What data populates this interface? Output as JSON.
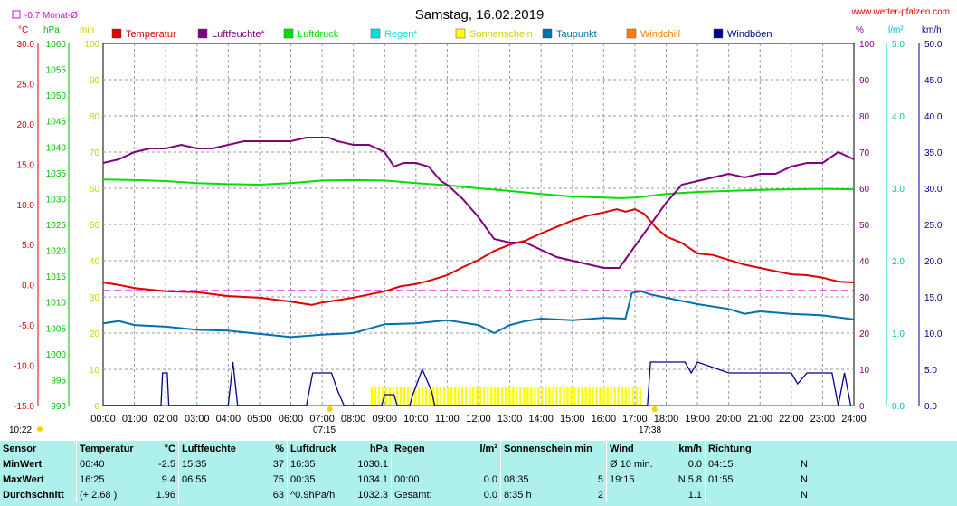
{
  "title": "Samstag, 16.02.2019",
  "site": "www.wetter-pfalzen.com",
  "month_avg_label": "-0.7 Monat-Ø",
  "clock": "10:22",
  "sunrise_label": "07:15",
  "sunset_label": "17:38",
  "units": {
    "temp": "°C",
    "press": "hPa",
    "min": "min",
    "pct": "%",
    "rain": "l/m²",
    "wind": "km/h"
  },
  "colors": {
    "temperature": "#e00000",
    "humidity": "#800080",
    "pressure": "#00e000",
    "rain": "#00e0e0",
    "sunshine": "#ffff00",
    "dewpoint": "#0070b0",
    "windchill": "#ff8000",
    "gusts": "#000090",
    "monthavg": "#e000e0"
  },
  "chart_data": {
    "type": "line",
    "x_ticks": [
      "00:00",
      "01:00",
      "02:00",
      "03:00",
      "04:00",
      "05:00",
      "06:00",
      "07:00",
      "08:00",
      "09:00",
      "10:00",
      "11:00",
      "12:00",
      "13:00",
      "14:00",
      "15:00",
      "16:00",
      "17:00",
      "18:00",
      "19:00",
      "20:00",
      "21:00",
      "22:00",
      "23:00",
      "24:00"
    ],
    "axes": {
      "temp_ticks": [
        "30.0",
        "25.0",
        "20.0",
        "15.0",
        "10.0",
        "5.0",
        "0.0",
        "-5.0",
        "-10.0",
        "-15.0"
      ],
      "press_ticks": [
        "1060",
        "1055",
        "1050",
        "1045",
        "1040",
        "1035",
        "1030",
        "1025",
        "1020",
        "1015",
        "1010",
        "1005",
        "1000",
        "995",
        "990"
      ],
      "min_ticks": [
        "100",
        "90",
        "80",
        "70",
        "60",
        "50",
        "40",
        "30",
        "20",
        "10",
        "0"
      ],
      "pct_ticks": [
        "100",
        "90",
        "80",
        "70",
        "60",
        "50",
        "40",
        "30",
        "20",
        "10",
        "0"
      ],
      "rain_ticks": [
        "5.0",
        "4.0",
        "3.0",
        "2.0",
        "1.0",
        "0.0"
      ],
      "wind_ticks": [
        "50.0",
        "45.0",
        "40.0",
        "35.0",
        "30.0",
        "25.0",
        "20.0",
        "15.0",
        "10.0",
        "5.0",
        "0.0"
      ],
      "temp_range": [
        -15,
        30
      ],
      "press_range": [
        990,
        1060
      ],
      "pct_range": [
        0,
        100
      ],
      "wind_range": [
        0,
        50
      ]
    },
    "legend": [
      {
        "key": "temperature",
        "label": "Temperatur"
      },
      {
        "key": "humidity",
        "label": "Luftfeuchte*"
      },
      {
        "key": "pressure",
        "label": "Luftdruck"
      },
      {
        "key": "rain",
        "label": "Regen*"
      },
      {
        "key": "sunshine",
        "label": "Sonnenschein"
      },
      {
        "key": "dewpoint",
        "label": "Taupunkt"
      },
      {
        "key": "windchill",
        "label": "Windchill"
      },
      {
        "key": "gusts",
        "label": "Windböen"
      }
    ],
    "month_avg_temp": -0.7,
    "series": {
      "temperature": [
        [
          0,
          0.3
        ],
        [
          0.5,
          0
        ],
        [
          1,
          -0.4
        ],
        [
          1.5,
          -0.6
        ],
        [
          2,
          -0.8
        ],
        [
          3,
          -0.9
        ],
        [
          4,
          -1.4
        ],
        [
          5,
          -1.6
        ],
        [
          6,
          -2.1
        ],
        [
          6.67,
          -2.5
        ],
        [
          7,
          -2.2
        ],
        [
          7.5,
          -1.9
        ],
        [
          8,
          -1.6
        ],
        [
          8.5,
          -1.2
        ],
        [
          9,
          -0.8
        ],
        [
          9.5,
          -0.2
        ],
        [
          10,
          0.1
        ],
        [
          10.5,
          0.6
        ],
        [
          11,
          1.2
        ],
        [
          11.5,
          2.2
        ],
        [
          12,
          3.1
        ],
        [
          12.5,
          4.2
        ],
        [
          13,
          5.0
        ],
        [
          13.5,
          5.5
        ],
        [
          14,
          6.4
        ],
        [
          14.5,
          7.2
        ],
        [
          15,
          8.0
        ],
        [
          15.5,
          8.6
        ],
        [
          16,
          9.0
        ],
        [
          16.42,
          9.4
        ],
        [
          16.7,
          9.1
        ],
        [
          17,
          9.4
        ],
        [
          17.3,
          8.8
        ],
        [
          17.7,
          7.0
        ],
        [
          18,
          6.0
        ],
        [
          18.5,
          5.2
        ],
        [
          19,
          3.9
        ],
        [
          19.5,
          3.7
        ],
        [
          20,
          3.1
        ],
        [
          20.5,
          2.5
        ],
        [
          21,
          2.1
        ],
        [
          21.5,
          1.7
        ],
        [
          22,
          1.3
        ],
        [
          22.5,
          1.2
        ],
        [
          23,
          0.9
        ],
        [
          23.5,
          0.4
        ],
        [
          24,
          0.3
        ]
      ],
      "humidity": [
        [
          0,
          67
        ],
        [
          0.5,
          68
        ],
        [
          1,
          70
        ],
        [
          1.5,
          71
        ],
        [
          2,
          71
        ],
        [
          2.5,
          72
        ],
        [
          3,
          71
        ],
        [
          3.5,
          71
        ],
        [
          4,
          72
        ],
        [
          4.5,
          73
        ],
        [
          5,
          73
        ],
        [
          5.5,
          73
        ],
        [
          6,
          73
        ],
        [
          6.5,
          74
        ],
        [
          6.92,
          74
        ],
        [
          7.2,
          74
        ],
        [
          7.5,
          73
        ],
        [
          8,
          72
        ],
        [
          8.5,
          72
        ],
        [
          9,
          70
        ],
        [
          9.3,
          66
        ],
        [
          9.6,
          67
        ],
        [
          10,
          67
        ],
        [
          10.4,
          66
        ],
        [
          10.8,
          62
        ],
        [
          11,
          61
        ],
        [
          11.5,
          57
        ],
        [
          12,
          52
        ],
        [
          12.5,
          46
        ],
        [
          13,
          45
        ],
        [
          13.5,
          45
        ],
        [
          14,
          43
        ],
        [
          14.5,
          41
        ],
        [
          15,
          40
        ],
        [
          15.5,
          39
        ],
        [
          16,
          38
        ],
        [
          16.5,
          38
        ],
        [
          17,
          44
        ],
        [
          17.5,
          50
        ],
        [
          18,
          56
        ],
        [
          18.5,
          61
        ],
        [
          19,
          62
        ],
        [
          19.5,
          63
        ],
        [
          20,
          64
        ],
        [
          20.5,
          63
        ],
        [
          21,
          64
        ],
        [
          21.5,
          64
        ],
        [
          22,
          66
        ],
        [
          22.5,
          67
        ],
        [
          23,
          67
        ],
        [
          23.5,
          70
        ],
        [
          24,
          68
        ]
      ],
      "pressure": [
        [
          0,
          1033.7
        ],
        [
          1,
          1033.6
        ],
        [
          2,
          1033.4
        ],
        [
          3,
          1033.0
        ],
        [
          4,
          1032.8
        ],
        [
          5,
          1032.7
        ],
        [
          6,
          1033.0
        ],
        [
          7,
          1033.5
        ],
        [
          8,
          1033.6
        ],
        [
          9,
          1033.5
        ],
        [
          10,
          1033.0
        ],
        [
          11,
          1032.6
        ],
        [
          12,
          1032.0
        ],
        [
          13,
          1031.5
        ],
        [
          14,
          1030.9
        ],
        [
          15,
          1030.4
        ],
        [
          16,
          1030.2
        ],
        [
          16.58,
          1030.1
        ],
        [
          17,
          1030.2
        ],
        [
          18,
          1030.9
        ],
        [
          19,
          1031.3
        ],
        [
          20,
          1031.5
        ],
        [
          21,
          1031.7
        ],
        [
          22,
          1031.8
        ],
        [
          23,
          1031.9
        ],
        [
          24,
          1031.8
        ]
      ],
      "dewpoint": [
        [
          0,
          -4.8
        ],
        [
          0.5,
          -4.5
        ],
        [
          1,
          -5.0
        ],
        [
          2,
          -5.2
        ],
        [
          3,
          -5.6
        ],
        [
          4,
          -5.7
        ],
        [
          5,
          -6.1
        ],
        [
          6,
          -6.5
        ],
        [
          7,
          -6.2
        ],
        [
          8,
          -6.0
        ],
        [
          9,
          -4.9
        ],
        [
          10,
          -4.8
        ],
        [
          11,
          -4.4
        ],
        [
          12,
          -5.0
        ],
        [
          12.5,
          -6.0
        ],
        [
          13,
          -5.0
        ],
        [
          13.5,
          -4.5
        ],
        [
          14,
          -4.2
        ],
        [
          15,
          -4.4
        ],
        [
          16,
          -4.1
        ],
        [
          16.7,
          -4.2
        ],
        [
          16.9,
          -1.0
        ],
        [
          17.2,
          -0.8
        ],
        [
          17.5,
          -1.2
        ],
        [
          18,
          -1.6
        ],
        [
          19,
          -2.4
        ],
        [
          20,
          -3.0
        ],
        [
          20.5,
          -3.6
        ],
        [
          21,
          -3.3
        ],
        [
          22,
          -3.6
        ],
        [
          23,
          -3.8
        ],
        [
          24,
          -4.3
        ]
      ],
      "gusts": [
        [
          0,
          0
        ],
        [
          1.85,
          0
        ],
        [
          1.9,
          4.5
        ],
        [
          2.05,
          4.5
        ],
        [
          2.1,
          0
        ],
        [
          4.0,
          0
        ],
        [
          4.15,
          6
        ],
        [
          4.3,
          0
        ],
        [
          6.5,
          0
        ],
        [
          6.7,
          4.5
        ],
        [
          7.3,
          4.5
        ],
        [
          7.5,
          2
        ],
        [
          7.7,
          0
        ],
        [
          8.9,
          0
        ],
        [
          9.0,
          1.5
        ],
        [
          9.3,
          1.5
        ],
        [
          9.4,
          0
        ],
        [
          9.8,
          0
        ],
        [
          9.9,
          1.5
        ],
        [
          10.2,
          5
        ],
        [
          10.5,
          2
        ],
        [
          10.6,
          0
        ],
        [
          17.4,
          0
        ],
        [
          17.5,
          6
        ],
        [
          18.6,
          6
        ],
        [
          18.8,
          4.5
        ],
        [
          19,
          6
        ],
        [
          20,
          4.5
        ],
        [
          22,
          4.5
        ],
        [
          22.2,
          3.0
        ],
        [
          22.5,
          4.5
        ],
        [
          23.3,
          4.5
        ],
        [
          23.5,
          0
        ],
        [
          23.7,
          4.5
        ],
        [
          23.9,
          0
        ]
      ],
      "sunshine": {
        "start": 8.55,
        "end": 17.25,
        "level": 5
      },
      "rain": [
        [
          0,
          0
        ],
        [
          24,
          0
        ]
      ]
    }
  },
  "stats": {
    "headers": [
      "Sensor",
      "Temperatur",
      "°C",
      "Luftfeuchte",
      "%",
      "Luftdruck",
      "hPa",
      "Regen",
      "l/m²",
      "Sonnenschein min",
      "Wind",
      "km/h",
      "Richtung"
    ],
    "rows": [
      {
        "label": "MinWert",
        "t_time": "06:40",
        "t_val": "-2.5",
        "h_time": "15:35",
        "h_val": "37",
        "p_time": "16:35",
        "p_val": "1030.1",
        "r_time": "",
        "r_val": "",
        "s_time": "",
        "s_val": "",
        "w_time": "Ø 10 min.",
        "w_val": "0.0",
        "d_time": "04:15",
        "d_val": "N"
      },
      {
        "label": "MaxWert",
        "t_time": "16:25",
        "t_val": "9.4",
        "h_time": "06:55",
        "h_val": "75",
        "p_time": "00:35",
        "p_val": "1034.1",
        "r_time": "00:00",
        "r_val": "0.0",
        "s_time": "08:35",
        "s_val": "5",
        "w_time": "19:15",
        "w_val": "N 5.8",
        "d_time": "01:55",
        "d_val": "N"
      },
      {
        "label": "Durchschnitt",
        "t_time": "(+ 2.68 )",
        "t_val": "1.96",
        "h_time": "",
        "h_val": "63",
        "p_time": "^0.9hPa/h",
        "p_val": "1032.3",
        "r_time": "Gesamt:",
        "r_val": "0.0",
        "s_time": "8:35 h",
        "s_val": "2",
        "w_time": "",
        "w_val": "1.1",
        "d_time": "",
        "d_val": "N"
      }
    ]
  }
}
